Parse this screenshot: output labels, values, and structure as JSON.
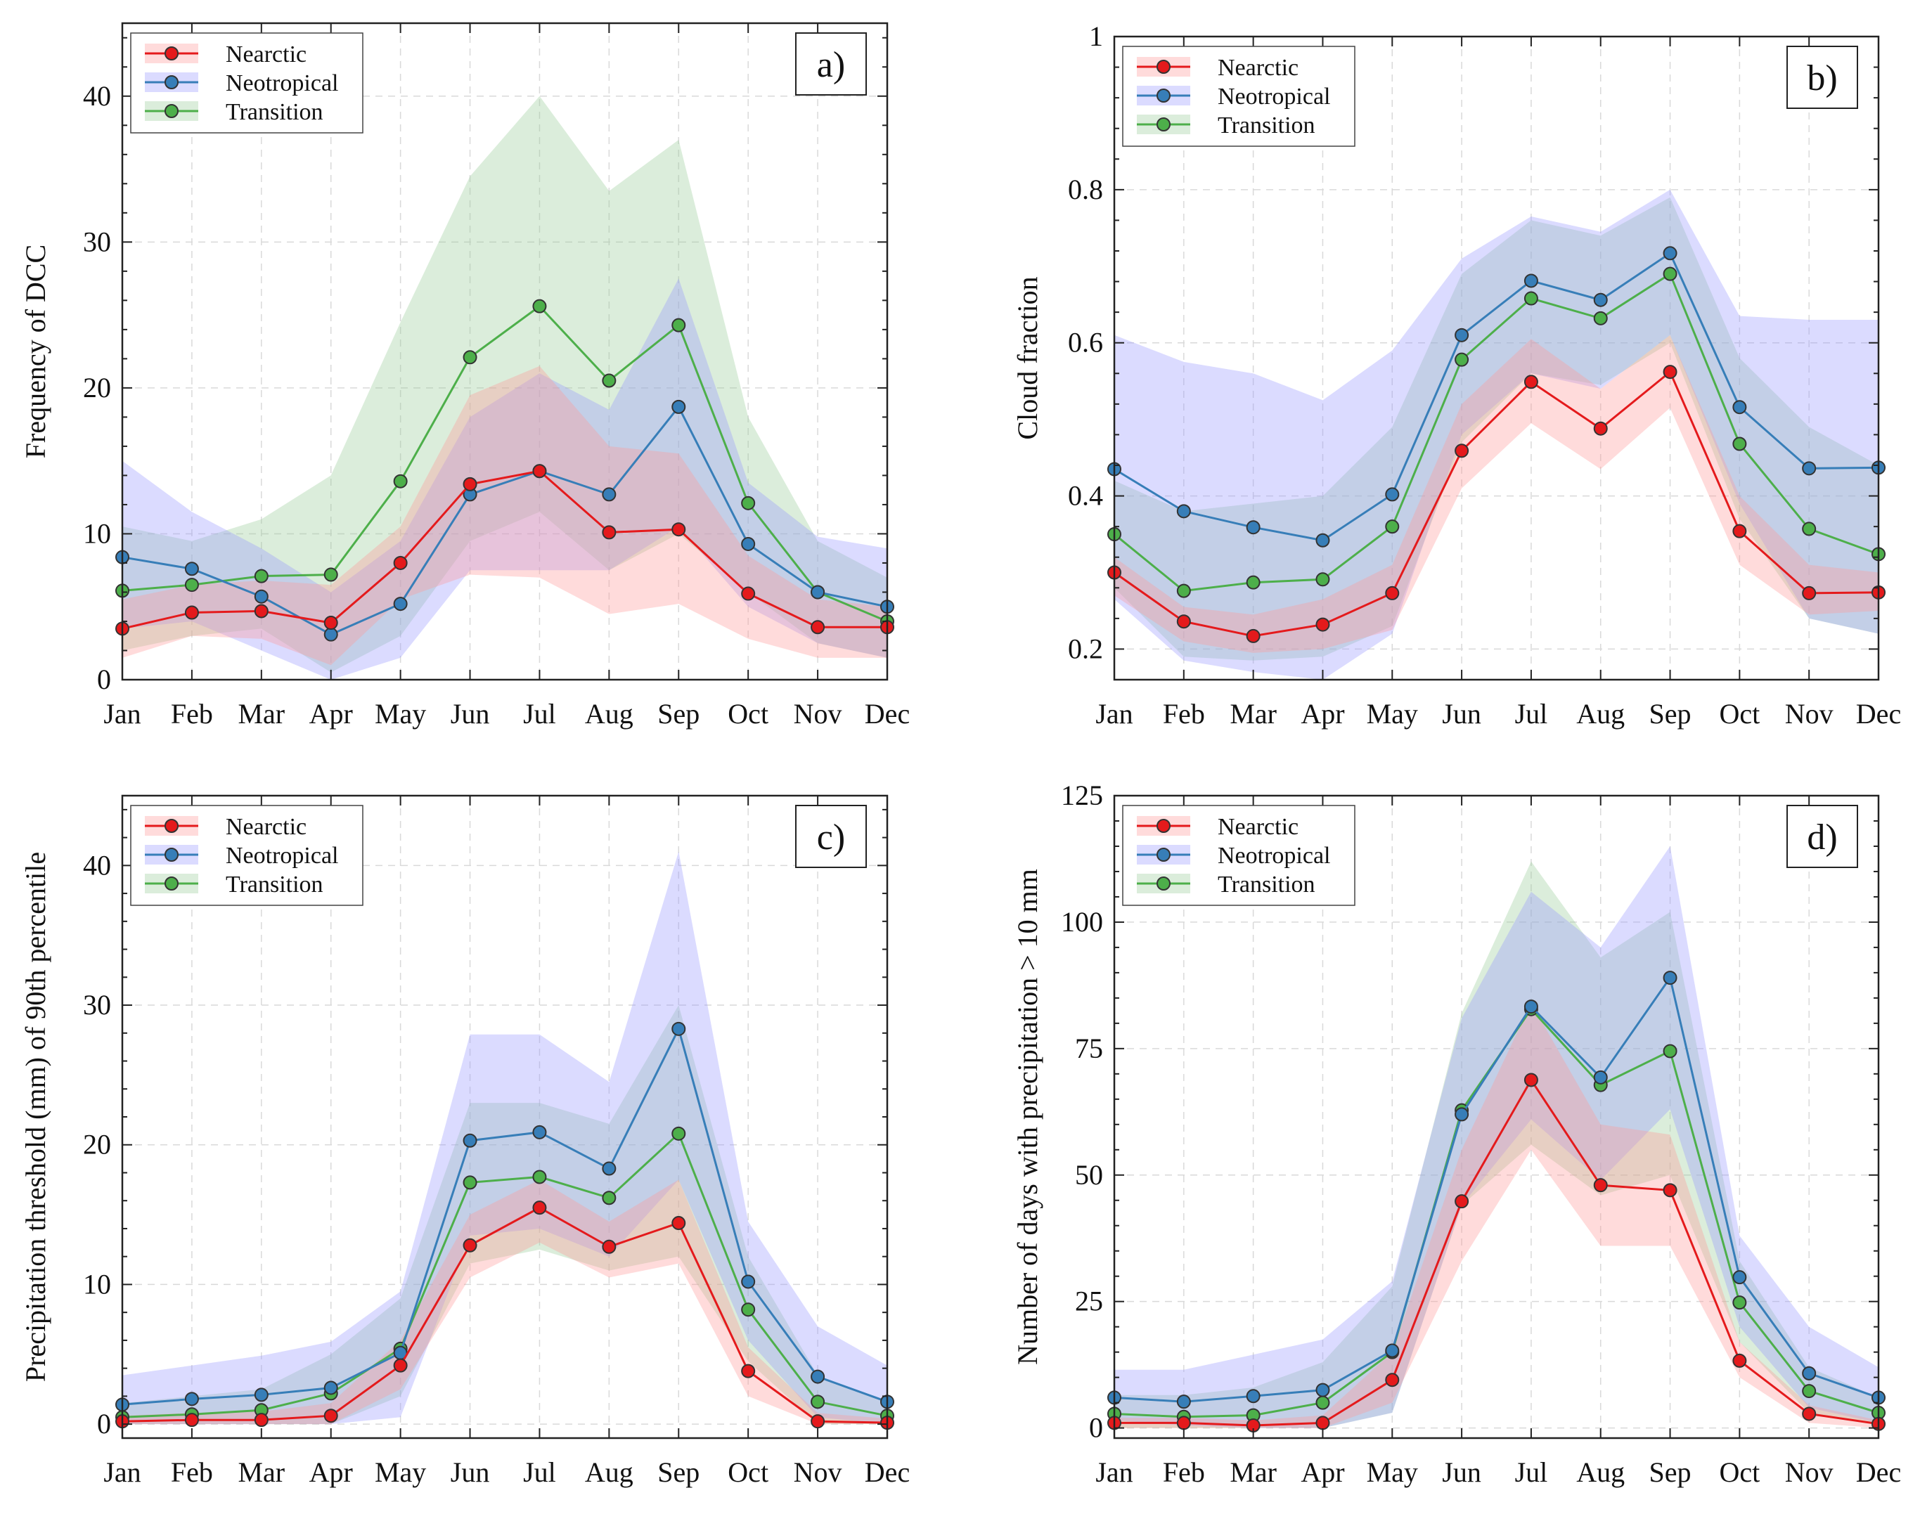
{
  "series_colors": {
    "Nearctic": "#e41a1c",
    "Neotropical": "#377eb8",
    "Transition": "#4daf4a"
  },
  "band_colors": {
    "Nearctic": "#ff9999",
    "Neotropical": "#9999ff",
    "Transition": "#99cc99"
  },
  "chart_data": [
    {
      "type": "line",
      "panel_label": "a)",
      "title": "",
      "xlabel": "",
      "ylabel": "Frequency of  DCC",
      "categories": [
        "Jan",
        "Feb",
        "Mar",
        "Apr",
        "May",
        "Jun",
        "Jul",
        "Aug",
        "Sep",
        "Oct",
        "Nov",
        "Dec"
      ],
      "ylim": [
        0,
        45
      ],
      "yticks": [
        0,
        10,
        20,
        30,
        40
      ],
      "ytick_labels": [
        "0",
        "10",
        "20",
        "30",
        "40"
      ],
      "grid": true,
      "legend_position": "top-left",
      "series": [
        {
          "name": "Nearctic",
          "values": [
            3.5,
            4.6,
            4.7,
            3.9,
            8.0,
            13.4,
            14.3,
            10.1,
            10.3,
            5.9,
            3.6,
            3.6
          ],
          "upper": [
            5.5,
            6.5,
            6.8,
            6.5,
            10.5,
            19.5,
            21.5,
            16.0,
            15.5,
            8.5,
            5.5,
            5.0
          ],
          "lower": [
            1.5,
            3.0,
            2.8,
            1.0,
            5.5,
            7.2,
            7.0,
            4.5,
            5.2,
            2.8,
            1.5,
            1.5
          ]
        },
        {
          "name": "Neotropical",
          "values": [
            8.4,
            7.6,
            5.7,
            3.1,
            5.2,
            12.7,
            14.3,
            12.7,
            18.7,
            9.3,
            6.0,
            5.0
          ],
          "upper": [
            15.0,
            11.5,
            9.0,
            6.0,
            9.5,
            18.0,
            21.0,
            18.5,
            27.5,
            13.5,
            9.8,
            9.0
          ],
          "lower": [
            3.5,
            4.0,
            2.0,
            0.0,
            1.5,
            7.5,
            7.5,
            7.5,
            10.5,
            5.0,
            2.5,
            1.5
          ]
        },
        {
          "name": "Transition",
          "values": [
            6.1,
            6.5,
            7.1,
            7.2,
            13.6,
            22.1,
            25.6,
            20.5,
            24.3,
            12.1,
            6.0,
            4.0
          ],
          "upper": [
            10.5,
            9.5,
            11.0,
            14.0,
            24.5,
            34.5,
            40.0,
            33.5,
            37.0,
            18.0,
            9.5,
            7.0
          ],
          "lower": [
            2.0,
            3.0,
            3.5,
            0.5,
            3.0,
            9.5,
            11.5,
            7.5,
            10.0,
            6.0,
            2.5,
            1.5
          ]
        }
      ]
    },
    {
      "type": "line",
      "panel_label": "b)",
      "title": "",
      "xlabel": "",
      "ylabel": "Cloud fraction",
      "categories": [
        "Jan",
        "Feb",
        "Mar",
        "Apr",
        "May",
        "Jun",
        "Jul",
        "Aug",
        "Sep",
        "Oct",
        "Nov",
        "Dec"
      ],
      "ylim": [
        0.16,
        1.0
      ],
      "yticks": [
        0.2,
        0.4,
        0.6,
        0.8,
        1.0
      ],
      "ytick_labels": [
        "0.2",
        "0.4",
        "0.6",
        "0.8",
        "1"
      ],
      "grid": true,
      "legend_position": "top-left",
      "series": [
        {
          "name": "Nearctic",
          "values": [
            0.3,
            0.236,
            0.217,
            0.232,
            0.273,
            0.459,
            0.549,
            0.488,
            0.562,
            0.354,
            0.273,
            0.274
          ],
          "upper": [
            0.32,
            0.255,
            0.245,
            0.265,
            0.31,
            0.52,
            0.605,
            0.54,
            0.61,
            0.4,
            0.31,
            0.3
          ],
          "lower": [
            0.27,
            0.21,
            0.195,
            0.2,
            0.225,
            0.41,
            0.495,
            0.435,
            0.515,
            0.31,
            0.245,
            0.25
          ]
        },
        {
          "name": "Neotropical",
          "values": [
            0.435,
            0.38,
            0.359,
            0.342,
            0.402,
            0.61,
            0.681,
            0.656,
            0.717,
            0.516,
            0.436,
            0.437
          ],
          "upper": [
            0.61,
            0.575,
            0.56,
            0.525,
            0.59,
            0.71,
            0.765,
            0.745,
            0.8,
            0.635,
            0.63,
            0.63
          ],
          "lower": [
            0.265,
            0.185,
            0.17,
            0.16,
            0.22,
            0.48,
            0.56,
            0.54,
            0.61,
            0.39,
            0.24,
            0.22
          ]
        },
        {
          "name": "Transition",
          "values": [
            0.35,
            0.276,
            0.287,
            0.291,
            0.36,
            0.578,
            0.658,
            0.632,
            0.69,
            0.468,
            0.357,
            0.324
          ],
          "upper": [
            0.42,
            0.38,
            0.39,
            0.4,
            0.49,
            0.69,
            0.76,
            0.74,
            0.79,
            0.58,
            0.49,
            0.44
          ],
          "lower": [
            0.28,
            0.19,
            0.185,
            0.19,
            0.23,
            0.47,
            0.56,
            0.545,
            0.6,
            0.37,
            0.24,
            0.22
          ]
        }
      ]
    },
    {
      "type": "line",
      "panel_label": "c)",
      "title": "",
      "xlabel": "",
      "ylabel": "Precipitation threshold (mm) of 90th percentile",
      "categories": [
        "Jan",
        "Feb",
        "Mar",
        "Apr",
        "May",
        "Jun",
        "Jul",
        "Aug",
        "Sep",
        "Oct",
        "Nov",
        "Dec"
      ],
      "ylim": [
        -1,
        45
      ],
      "yticks": [
        0,
        10,
        20,
        30,
        40
      ],
      "ytick_labels": [
        "0",
        "10",
        "20",
        "30",
        "40"
      ],
      "grid": true,
      "legend_position": "top-left",
      "series": [
        {
          "name": "Nearctic",
          "values": [
            0.2,
            0.3,
            0.3,
            0.6,
            4.2,
            12.8,
            15.5,
            12.7,
            14.4,
            3.8,
            0.2,
            0.1
          ],
          "upper": [
            0.6,
            0.8,
            0.9,
            1.5,
            6.0,
            15.0,
            17.5,
            14.5,
            17.5,
            5.5,
            0.8,
            0.4
          ],
          "lower": [
            0.0,
            0.0,
            0.0,
            0.0,
            2.5,
            10.5,
            13.0,
            10.5,
            11.5,
            2.0,
            0.0,
            0.0
          ]
        },
        {
          "name": "Neotropical",
          "values": [
            1.4,
            1.8,
            2.1,
            2.6,
            5.1,
            20.3,
            20.9,
            18.3,
            28.3,
            10.2,
            3.4,
            1.6
          ],
          "upper": [
            3.5,
            4.2,
            4.9,
            5.9,
            9.5,
            27.9,
            27.9,
            24.5,
            41.0,
            14.5,
            7.0,
            4.2
          ],
          "lower": [
            0.0,
            0.0,
            0.0,
            0.0,
            0.5,
            13.5,
            14.0,
            12.0,
            17.5,
            6.0,
            0.5,
            0.0
          ]
        },
        {
          "name": "Transition",
          "values": [
            0.5,
            0.7,
            1.0,
            2.2,
            5.4,
            17.3,
            17.7,
            16.2,
            20.8,
            8.2,
            1.6,
            0.6
          ],
          "upper": [
            1.5,
            2.0,
            2.5,
            5.0,
            9.0,
            23.0,
            23.0,
            21.5,
            30.0,
            12.0,
            3.5,
            1.5
          ],
          "lower": [
            0.0,
            0.0,
            0.0,
            0.0,
            2.0,
            11.5,
            12.5,
            11.0,
            12.0,
            4.5,
            0.0,
            0.0
          ]
        }
      ]
    },
    {
      "type": "line",
      "panel_label": "d)",
      "title": "",
      "xlabel": "",
      "ylabel": "Number of days with precipitation > 10 mm",
      "categories": [
        "Jan",
        "Feb",
        "Mar",
        "Apr",
        "May",
        "Jun",
        "Jul",
        "Aug",
        "Sep",
        "Oct",
        "Nov",
        "Dec"
      ],
      "ylim": [
        -2,
        125
      ],
      "yticks": [
        0,
        25,
        50,
        75,
        100,
        125
      ],
      "ytick_labels": [
        "0",
        "25",
        "50",
        "75",
        "100",
        "125"
      ],
      "grid": true,
      "legend_position": "top-left",
      "series": [
        {
          "name": "Nearctic",
          "values": [
            1.0,
            1.0,
            0.5,
            1.0,
            9.5,
            44.8,
            68.8,
            48.0,
            47.0,
            13.3,
            2.8,
            0.8
          ],
          "upper": [
            2.0,
            2.0,
            1.5,
            2.5,
            15.0,
            55.0,
            84.0,
            60.0,
            58.0,
            17.0,
            4.5,
            1.5
          ],
          "lower": [
            0.0,
            0.0,
            0.0,
            0.0,
            5.0,
            33.0,
            55.0,
            36.0,
            36.0,
            10.0,
            1.0,
            0.0
          ]
        },
        {
          "name": "Neotropical",
          "values": [
            6.0,
            5.2,
            6.3,
            7.5,
            15.3,
            62.0,
            83.3,
            69.3,
            89.0,
            29.8,
            10.8,
            6.0
          ],
          "upper": [
            11.5,
            11.5,
            14.5,
            17.5,
            29.0,
            81.0,
            106.0,
            95.0,
            115.0,
            38.0,
            20.0,
            12.0
          ],
          "lower": [
            1.5,
            0.5,
            0.0,
            0.0,
            3.0,
            44.0,
            61.0,
            49.0,
            63.0,
            20.0,
            4.0,
            1.0
          ]
        },
        {
          "name": "Transition",
          "values": [
            2.8,
            2.2,
            2.5,
            5.0,
            15.0,
            62.8,
            82.8,
            67.8,
            74.5,
            24.8,
            7.3,
            3.0
          ],
          "upper": [
            6.5,
            6.5,
            8.0,
            13.0,
            28.0,
            82.0,
            112.0,
            93.0,
            102.0,
            33.0,
            12.0,
            6.0
          ],
          "lower": [
            0.0,
            0.0,
            0.0,
            0.0,
            3.0,
            44.0,
            56.0,
            46.0,
            50.0,
            17.0,
            3.0,
            0.5
          ]
        }
      ]
    }
  ]
}
